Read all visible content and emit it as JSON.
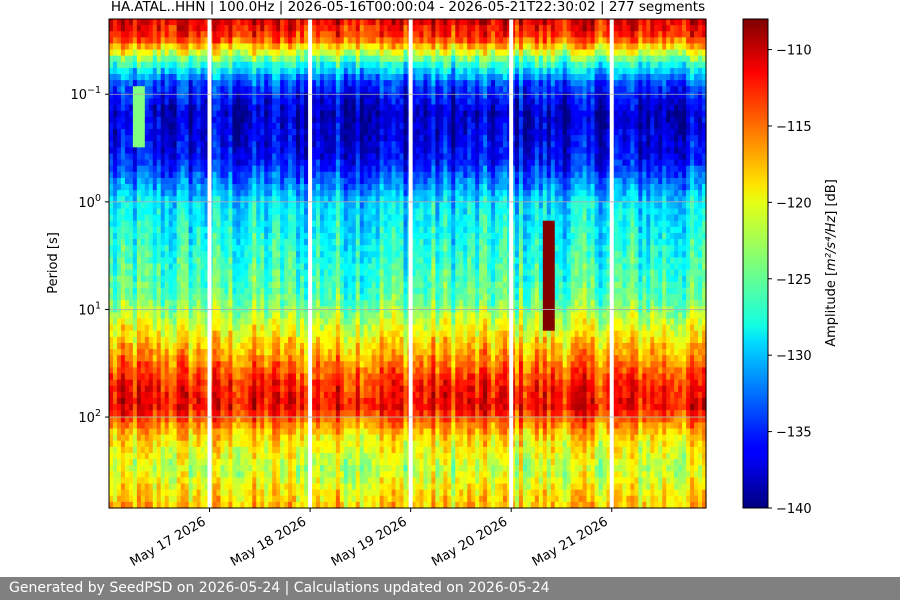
{
  "chart_data": {
    "type": "heatmap",
    "title": "HA.ATAL..HHN | 100.0Hz | 2026-05-16T00:00:04 - 2026-05-21T22:30:02 | 277 segments",
    "xlabel": "",
    "ylabel": "Period [s]",
    "yscale": "log",
    "ylim": [
      0.02,
      700
    ],
    "y_inverted": true,
    "xlim": [
      "2026-05-16T00:00:04",
      "2026-05-21T22:30:02"
    ],
    "x_ticks": [
      {
        "date": "2026-05-17",
        "label": "May 17 2026"
      },
      {
        "date": "2026-05-18",
        "label": "May 18 2026"
      },
      {
        "date": "2026-05-19",
        "label": "May 19 2026"
      },
      {
        "date": "2026-05-20",
        "label": "May 20 2026"
      },
      {
        "date": "2026-05-21",
        "label": "May 21 2026"
      }
    ],
    "y_ticks": [
      {
        "value": 0.1,
        "base": "10",
        "exp": "−1"
      },
      {
        "value": 1,
        "base": "10",
        "exp": "0"
      },
      {
        "value": 10,
        "base": "10",
        "exp": "1"
      },
      {
        "value": 100,
        "base": "10",
        "exp": "2"
      }
    ],
    "gaps": [
      "2026-05-17",
      "2026-05-18",
      "2026-05-19",
      "2026-05-20",
      "2026-05-21"
    ],
    "grid": true,
    "colormap": "jet",
    "colorbar": {
      "label_prefix": "Amplitude [",
      "label_suffix": "] [dB]",
      "label_math": "m²/s⁴/Hz",
      "range": [
        -140,
        -108
      ],
      "ticks": [
        -110,
        -115,
        -120,
        -125,
        -130,
        -135,
        -140
      ]
    },
    "amplitude_profile": [
      {
        "period": 0.02,
        "db": -111
      },
      {
        "period": 0.03,
        "db": -114
      },
      {
        "period": 0.05,
        "db": -126
      },
      {
        "period": 0.08,
        "db": -134
      },
      {
        "period": 0.15,
        "db": -138
      },
      {
        "period": 0.4,
        "db": -136
      },
      {
        "period": 1,
        "db": -129
      },
      {
        "period": 3,
        "db": -127
      },
      {
        "period": 8,
        "db": -125
      },
      {
        "period": 20,
        "db": -119
      },
      {
        "period": 50,
        "db": -113
      },
      {
        "period": 80,
        "db": -112
      },
      {
        "period": 150,
        "db": -119
      },
      {
        "period": 300,
        "db": -122
      },
      {
        "period": 700,
        "db": -118
      }
    ],
    "events": [
      {
        "time": "2026-05-20T09:00:00",
        "period_min": 1.5,
        "period_max": 15,
        "peak_db": -108
      },
      {
        "time": "2026-05-16T07:00:00",
        "period_min": 0.08,
        "period_max": 0.3,
        "peak_db": -124
      }
    ]
  },
  "footer": {
    "text": "Generated by SeedPSD on 2026-05-24 | Calculations updated on 2026-05-24"
  }
}
